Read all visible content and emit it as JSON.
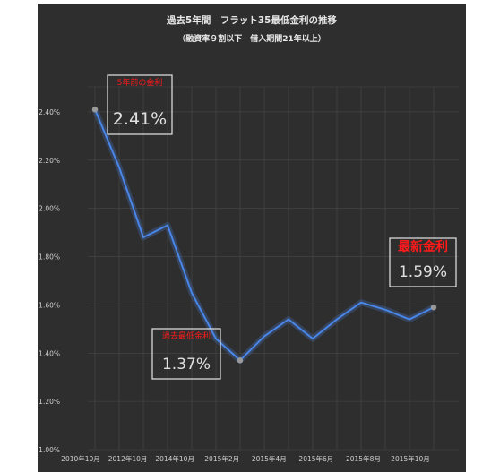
{
  "chart_data": {
    "type": "line",
    "title": "過去5年間　フラット35最低金利の推移",
    "subtitle": "（融資率９割以下　借入期間21年以上）",
    "xlabel": "",
    "ylabel": "",
    "ylim": [
      1.0,
      2.5
    ],
    "yticks": [
      "1.00%",
      "1.20%",
      "1.40%",
      "1.60%",
      "1.80%",
      "2.00%",
      "2.20%",
      "2.40%"
    ],
    "xticks": [
      "2010年10月",
      "2012年10月",
      "2014年10月",
      "2015年2月",
      "2015年4月",
      "2015年6月",
      "2015年8月",
      "2015年10月"
    ],
    "grid": true,
    "legend": "none",
    "series": [
      {
        "values": [
          2.41,
          2.17,
          1.88,
          1.93,
          1.65,
          1.46,
          1.37,
          1.47,
          1.54,
          1.46,
          1.54,
          1.61,
          1.58,
          1.54,
          1.59
        ]
      }
    ],
    "annotations": [
      {
        "label": "5年前の金利",
        "value": "2.41%",
        "point_index": 0,
        "label_color": "#ff1a1a"
      },
      {
        "label": "過去最低金利",
        "value": "1.37%",
        "point_index": 6,
        "label_color": "#ff1a1a"
      },
      {
        "label": "最新金利",
        "value": "1.59%",
        "point_index": 14,
        "label_color": "#ff1a1a"
      }
    ],
    "colors": {
      "background": "#2e2e2e",
      "line": "#4a86e8",
      "grid": "#484848",
      "text": "#cfcfcf",
      "marker": "#9a9a9a",
      "callout_border": "#e6e6e6",
      "callout_value": "#e0e0e0"
    }
  }
}
